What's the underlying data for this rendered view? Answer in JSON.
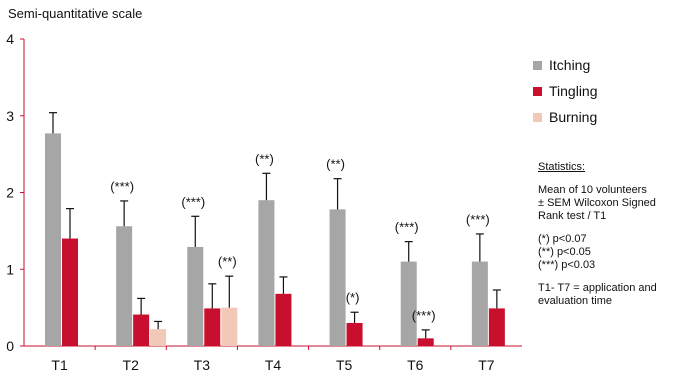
{
  "chart_data": {
    "type": "bar",
    "ylabel": "Semi-quantitative scale",
    "ylim": [
      0,
      4
    ],
    "yticks": [
      "0",
      "1",
      "2",
      "3",
      "4"
    ],
    "categories": [
      "T1",
      "T2",
      "T3",
      "T4",
      "T5",
      "T6",
      "T7"
    ],
    "series": [
      {
        "name": "Itching",
        "color": "#a6a6a6",
        "values": [
          2.77,
          1.56,
          1.29,
          1.9,
          1.78,
          1.1,
          1.1
        ],
        "errors": [
          0.27,
          0.33,
          0.4,
          0.35,
          0.4,
          0.26,
          0.36
        ]
      },
      {
        "name": "Tingling",
        "color": "#c8102e",
        "values": [
          1.4,
          0.41,
          0.49,
          0.68,
          0.3,
          0.1,
          0.49
        ],
        "errors": [
          0.39,
          0.21,
          0.32,
          0.22,
          0.14,
          0.11,
          0.24
        ]
      },
      {
        "name": "Burning",
        "color": "#f2c9b8",
        "values": [
          null,
          0.22,
          0.5,
          null,
          null,
          null,
          null
        ],
        "errors": [
          null,
          0.1,
          0.41,
          null,
          null,
          null,
          null
        ]
      }
    ],
    "annotations": [
      {
        "category": "T2",
        "series": "Itching",
        "text": "(***)"
      },
      {
        "category": "T3",
        "series": "Itching",
        "text": "(***)"
      },
      {
        "category": "T3",
        "series": "Burning",
        "text": "(**)"
      },
      {
        "category": "T4",
        "series": "Itching",
        "text": "(**)"
      },
      {
        "category": "T5",
        "series": "Itching",
        "text": "(**)"
      },
      {
        "category": "T5",
        "series": "Tingling",
        "text": "(*)"
      },
      {
        "category": "T6",
        "series": "Itching",
        "text": "(***)"
      },
      {
        "category": "T6",
        "series": "Tingling",
        "text": "(***)"
      },
      {
        "category": "T7",
        "series": "Itching",
        "text": "(***)"
      }
    ],
    "axis_color": "#c8102e",
    "legend_position": "right",
    "grid": false
  },
  "legend": {
    "items": [
      {
        "label": "Itching",
        "color": "#a6a6a6"
      },
      {
        "label": "Tingling",
        "color": "#c8102e"
      },
      {
        "label": "Burning",
        "color": "#f2c9b8"
      }
    ]
  },
  "stats": {
    "heading": "Statistics:",
    "mean_line1": "Mean of 10 volunteers",
    "mean_line2": "± SEM Wilcoxon Signed",
    "mean_line3": "Rank test / T1",
    "p1": "(*) p<0.07",
    "p2": "(**) p<0.05",
    "p3": "(***) p<0.03",
    "note_line1": "T1- T7 = application and",
    "note_line2": "evaluation time"
  }
}
